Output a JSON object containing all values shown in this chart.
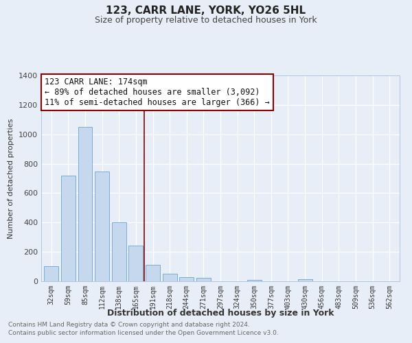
{
  "title": "123, CARR LANE, YORK, YO26 5HL",
  "subtitle": "Size of property relative to detached houses in York",
  "xlabel": "Distribution of detached houses by size in York",
  "ylabel": "Number of detached properties",
  "bar_labels": [
    "32sqm",
    "59sqm",
    "85sqm",
    "112sqm",
    "138sqm",
    "165sqm",
    "191sqm",
    "218sqm",
    "244sqm",
    "271sqm",
    "297sqm",
    "324sqm",
    "350sqm",
    "377sqm",
    "403sqm",
    "430sqm",
    "456sqm",
    "483sqm",
    "509sqm",
    "536sqm",
    "562sqm"
  ],
  "bar_values": [
    105,
    720,
    1050,
    748,
    400,
    245,
    112,
    50,
    27,
    25,
    0,
    0,
    10,
    0,
    0,
    13,
    0,
    0,
    0,
    0,
    0
  ],
  "bar_color": "#c5d8ee",
  "bar_edge_color": "#7dadd4",
  "vline_x": 5.5,
  "vline_color": "#8b0000",
  "ylim": [
    0,
    1400
  ],
  "yticks": [
    0,
    200,
    400,
    600,
    800,
    1000,
    1200,
    1400
  ],
  "annotation_title": "123 CARR LANE: 174sqm",
  "annotation_line1": "← 89% of detached houses are smaller (3,092)",
  "annotation_line2": "11% of semi-detached houses are larger (366) →",
  "annotation_box_color": "#ffffff",
  "annotation_box_edge": "#8b0000",
  "footer_line1": "Contains HM Land Registry data © Crown copyright and database right 2024.",
  "footer_line2": "Contains public sector information licensed under the Open Government Licence v3.0.",
  "fig_bg_color": "#e8eef7",
  "plot_bg_color": "#e8eef7",
  "grid_color": "#ffffff",
  "title_fontsize": 11,
  "subtitle_fontsize": 9
}
